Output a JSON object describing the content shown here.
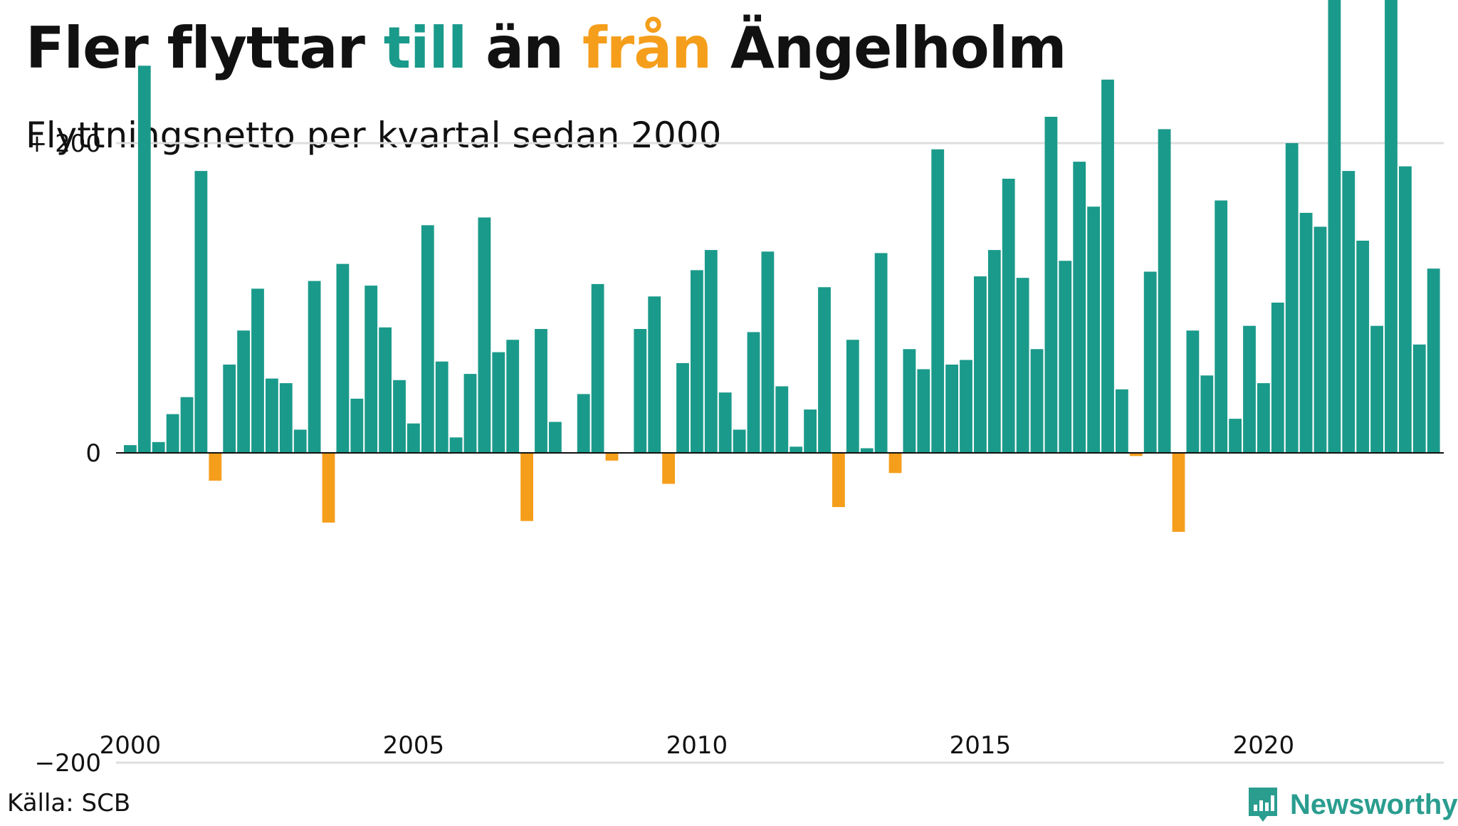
{
  "title_parts": {
    "p1": "Fler flyttar ",
    "p2": "till",
    "p3": " än ",
    "p4": "från",
    "p5": " Ängelholm"
  },
  "subtitle": "Flyttningsnetto per kvartal sedan 2000",
  "source": "Källa: SCB",
  "brand": "Newsworthy",
  "colors": {
    "positive": "#1a9a8a",
    "negative": "#f59e1b",
    "title_positive": "#1a9a8a",
    "title_negative": "#f59e1b",
    "brand": "#2a9d8f"
  },
  "chart_data": {
    "type": "bar",
    "x_start": "2000 Q1",
    "x_ticks": [
      "2000",
      "2005",
      "2010",
      "2015",
      "2020"
    ],
    "y_ticks": [
      "+ 200",
      "0",
      "−200"
    ],
    "y_tick_values": [
      200,
      0,
      -200
    ],
    "ylim": [
      -300,
      330
    ],
    "grid": true,
    "values": [
      5,
      250,
      7,
      25,
      36,
      182,
      -18,
      57,
      79,
      106,
      48,
      45,
      15,
      111,
      -45,
      122,
      35,
      108,
      81,
      47,
      19,
      147,
      59,
      10,
      51,
      152,
      65,
      73,
      -44,
      80,
      20,
      0,
      38,
      109,
      -5,
      0,
      80,
      101,
      -20,
      58,
      118,
      131,
      39,
      15,
      78,
      130,
      43,
      4,
      28,
      107,
      -35,
      73,
      3,
      129,
      -13,
      67,
      54,
      196,
      57,
      60,
      114,
      131,
      177,
      113,
      67,
      217,
      124,
      188,
      159,
      241,
      41,
      -2,
      117,
      209,
      -51,
      79,
      50,
      163,
      22,
      82,
      45,
      97,
      200,
      155,
      146,
      299,
      182,
      137,
      82,
      310,
      185,
      70,
      119
    ]
  }
}
